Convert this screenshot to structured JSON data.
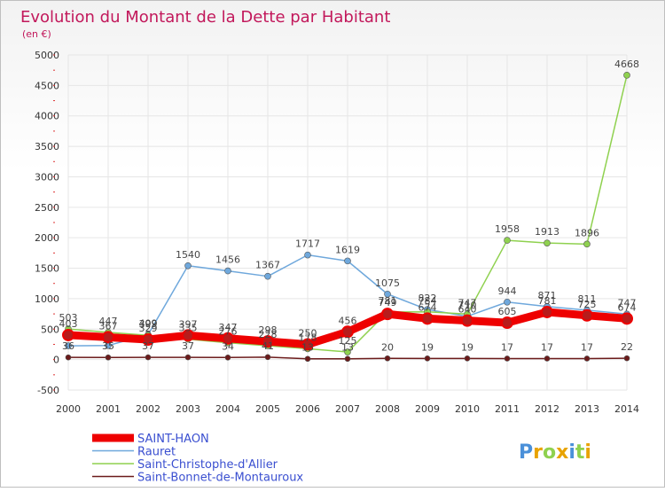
{
  "chart_data": {
    "type": "line",
    "title": "Evolution du Montant de la Dette par Habitant",
    "subtitle": "(en €)",
    "ylim": [
      -500,
      5000
    ],
    "yticks": [
      "-500",
      "0",
      "500",
      "1000",
      "1500",
      "2000",
      "2500",
      "3000",
      "3500",
      "4000",
      "4500",
      "5000"
    ],
    "x": [
      "2000",
      "2001",
      "2002",
      "2003",
      "2004",
      "2005",
      "2006",
      "2007",
      "2008",
      "2009",
      "2010",
      "2011",
      "2012",
      "2013",
      "2014"
    ],
    "series": [
      {
        "name": "SAINT-HAON",
        "color": "#ee0000",
        "values": [
          403,
          367,
          329,
          397,
          347,
          298,
          250,
          456,
          749,
          674,
          640,
          605,
          781,
          725,
          674
        ],
        "labels": [
          "403",
          "367",
          "329",
          "397",
          "347",
          "298",
          "250",
          "456",
          "749",
          "674",
          "640",
          "605",
          "781",
          "725",
          "674"
        ]
      },
      {
        "name": "Rauret",
        "color": "#6fa8dc",
        "values": [
          226,
          231,
          409,
          1540,
          1456,
          1367,
          1717,
          1619,
          1075,
          822,
          710,
          944,
          871,
          811,
          747
        ],
        "labels": [
          "",
          "",
          "409",
          "1540",
          "1456",
          "1367",
          "1717",
          "1619",
          "1075",
          "822",
          "710",
          "944",
          "871",
          "811",
          "747"
        ]
      },
      {
        "name": "Saint-Christophe-d'Allier",
        "color": "#8fd14f",
        "values": [
          503,
          447,
          399,
          335,
          276,
          228,
          178,
          125,
          781,
          784,
          747,
          1958,
          1913,
          1896,
          4668
        ],
        "labels": [
          "503",
          "447",
          "399",
          "335",
          "276",
          "228",
          "178",
          "125",
          "781",
          "784",
          "747",
          "1958",
          "1913",
          "1896",
          "4668"
        ]
      },
      {
        "name": "Saint-Bonnet-de-Montauroux",
        "color": "#6b1a1a",
        "values": [
          36,
          35,
          37,
          37,
          34,
          41,
          13,
          13,
          20,
          19,
          19,
          17,
          17,
          17,
          22
        ],
        "labels": [
          "36",
          "35",
          "37",
          "37",
          "34",
          "41",
          "13",
          "13",
          "20",
          "19",
          "19",
          "17",
          "17",
          "17",
          "22"
        ]
      }
    ]
  },
  "logo": {
    "text": "Proxiti",
    "letters": [
      "P",
      "r",
      "o",
      "x",
      "i",
      "t",
      "i"
    ],
    "colors": [
      "#4a90d9",
      "#e8a300",
      "#8fd14f",
      "#e8a300",
      "#4a90d9",
      "#8fd14f",
      "#e8a300"
    ]
  }
}
